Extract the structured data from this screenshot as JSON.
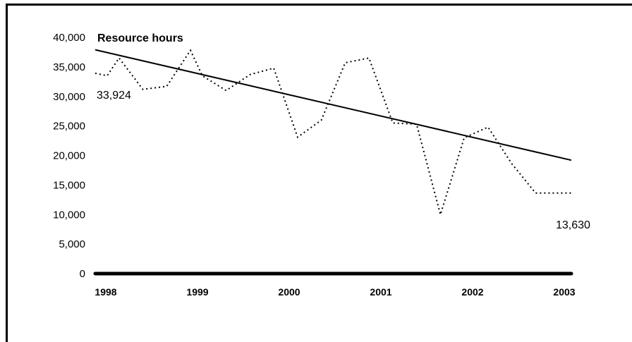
{
  "chart_data": {
    "type": "line",
    "title": "Resource hours",
    "xlabel": "",
    "ylabel": "",
    "ylim": [
      0,
      40000
    ],
    "y_ticks": [
      "0",
      "5,000",
      "10,000",
      "15,000",
      "20,000",
      "25,000",
      "30,000",
      "35,000",
      "40,000"
    ],
    "y_tick_values": [
      0,
      5000,
      10000,
      15000,
      20000,
      25000,
      30000,
      35000,
      40000
    ],
    "x_ticks": [
      "1998",
      "1999",
      "2000",
      "2001",
      "2002",
      "2003"
    ],
    "xlim": [
      1998,
      2003
    ],
    "grid": false,
    "series": [
      {
        "style": "dotted",
        "x": [
          1998.0,
          1998.125,
          1998.25,
          1998.5,
          1998.75,
          1999.0,
          1999.125,
          1999.375,
          1999.625,
          1999.875,
          2000.125,
          2000.375,
          2000.625,
          2000.875,
          2001.125,
          2001.375,
          2001.625,
          2001.875,
          2002.125,
          2002.375,
          2002.625,
          2002.875,
          2003.0
        ],
        "values": [
          33924,
          33500,
          36500,
          31200,
          31700,
          37800,
          33500,
          31000,
          33700,
          34800,
          23100,
          26000,
          35700,
          36500,
          25500,
          25300,
          10000,
          23000,
          24800,
          18600,
          13630,
          13630,
          13630
        ]
      },
      {
        "style": "solid",
        "x": [
          1998,
          2003
        ],
        "values": [
          37900,
          19200
        ]
      }
    ],
    "annotations": [
      {
        "text": "33,924",
        "x": 1998,
        "y": 33924
      },
      {
        "text": "13,630",
        "x": 2003,
        "y": 13630
      }
    ]
  }
}
